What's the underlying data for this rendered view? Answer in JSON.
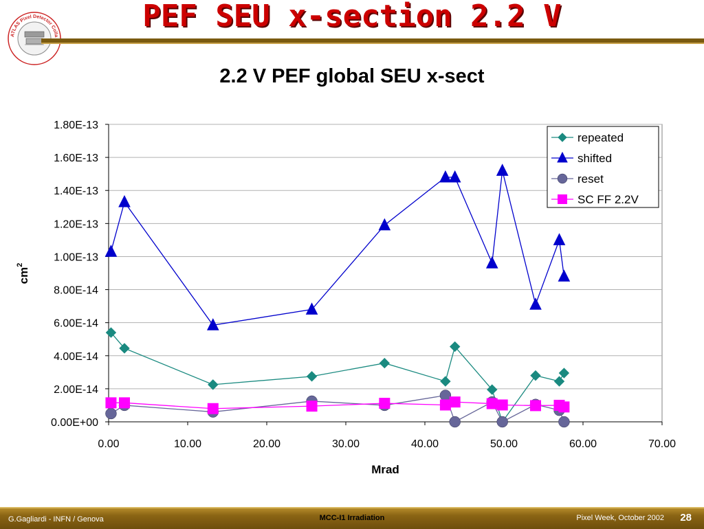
{
  "slide": {
    "title": "PEF SEU x-section 2.2 V",
    "logo_text": "ATLAS Pixel Detector Collaboration"
  },
  "footer": {
    "author": "G.Gagliardi - INFN / Genova",
    "center": "MCC-I1 Irradiation",
    "event": "Pixel Week, October 2002",
    "page": "28"
  },
  "chart_data": {
    "type": "line",
    "title": "2.2 V PEF global SEU x-sect",
    "xlabel": "Mrad",
    "ylabel": "cm",
    "ylabel_sup": "2",
    "xlim": [
      0,
      70
    ],
    "ylim": [
      0,
      1.8e-13
    ],
    "x_ticks": [
      "0.00",
      "10.00",
      "20.00",
      "30.00",
      "40.00",
      "50.00",
      "60.00",
      "70.00"
    ],
    "x_tick_values": [
      0,
      10,
      20,
      30,
      40,
      50,
      60,
      70
    ],
    "y_ticks": [
      "0.00E+00",
      "2.00E-14",
      "4.00E-14",
      "6.00E-14",
      "8.00E-14",
      "1.00E-13",
      "1.20E-13",
      "1.40E-13",
      "1.60E-13",
      "1.80E-13"
    ],
    "y_tick_values": [
      0,
      2e-14,
      4e-14,
      6e-14,
      8e-14,
      1e-13,
      1.2e-13,
      1.4e-13,
      1.6e-13,
      1.8e-13
    ],
    "grid": "horizontal",
    "legend_position": "top-right",
    "series": [
      {
        "name": "repeated",
        "color": "#1a8a80",
        "marker": "diamond",
        "x": [
          0.3,
          2.0,
          13.2,
          25.7,
          34.9,
          42.6,
          43.8,
          48.5,
          49.8,
          54.0,
          57.0,
          57.6
        ],
        "y": [
          5.4e-14,
          4.45e-14,
          2.25e-14,
          2.75e-14,
          3.55e-14,
          2.45e-14,
          4.55e-14,
          1.95e-14,
          0,
          2.8e-14,
          2.45e-14,
          2.95e-14
        ]
      },
      {
        "name": "shifted",
        "color": "#0000cc",
        "marker": "triangle",
        "x": [
          0.3,
          2.0,
          13.2,
          25.7,
          34.9,
          42.6,
          43.8,
          48.5,
          49.8,
          54.0,
          57.0,
          57.6
        ],
        "y": [
          1.03e-13,
          1.33e-13,
          5.85e-14,
          6.8e-14,
          1.19e-13,
          1.48e-13,
          1.48e-13,
          9.6e-14,
          1.52e-13,
          7.1e-14,
          1.1e-13,
          8.8e-14
        ]
      },
      {
        "name": "reset",
        "color": "#666699",
        "marker": "circle",
        "x": [
          0.3,
          2.0,
          13.2,
          25.7,
          34.9,
          42.6,
          43.8,
          48.5,
          49.8,
          54.0,
          57.0,
          57.6
        ],
        "y": [
          5e-15,
          1e-14,
          6e-15,
          1.25e-14,
          1e-14,
          1.6e-14,
          0,
          1.2e-14,
          0,
          1.05e-14,
          7e-15,
          0
        ]
      },
      {
        "name": "SC FF 2.2V",
        "color": "#ff00ff",
        "marker": "square",
        "x": [
          0.3,
          2.0,
          13.2,
          25.7,
          34.9,
          42.6,
          43.8,
          48.5,
          49.8,
          54.0,
          57.0,
          57.6
        ],
        "y": [
          1.15e-14,
          1.15e-14,
          8e-15,
          9.5e-15,
          1.12e-14,
          1.02e-14,
          1.2e-14,
          1.1e-14,
          1.02e-14,
          9.8e-15,
          1e-14,
          9e-15
        ]
      }
    ]
  }
}
